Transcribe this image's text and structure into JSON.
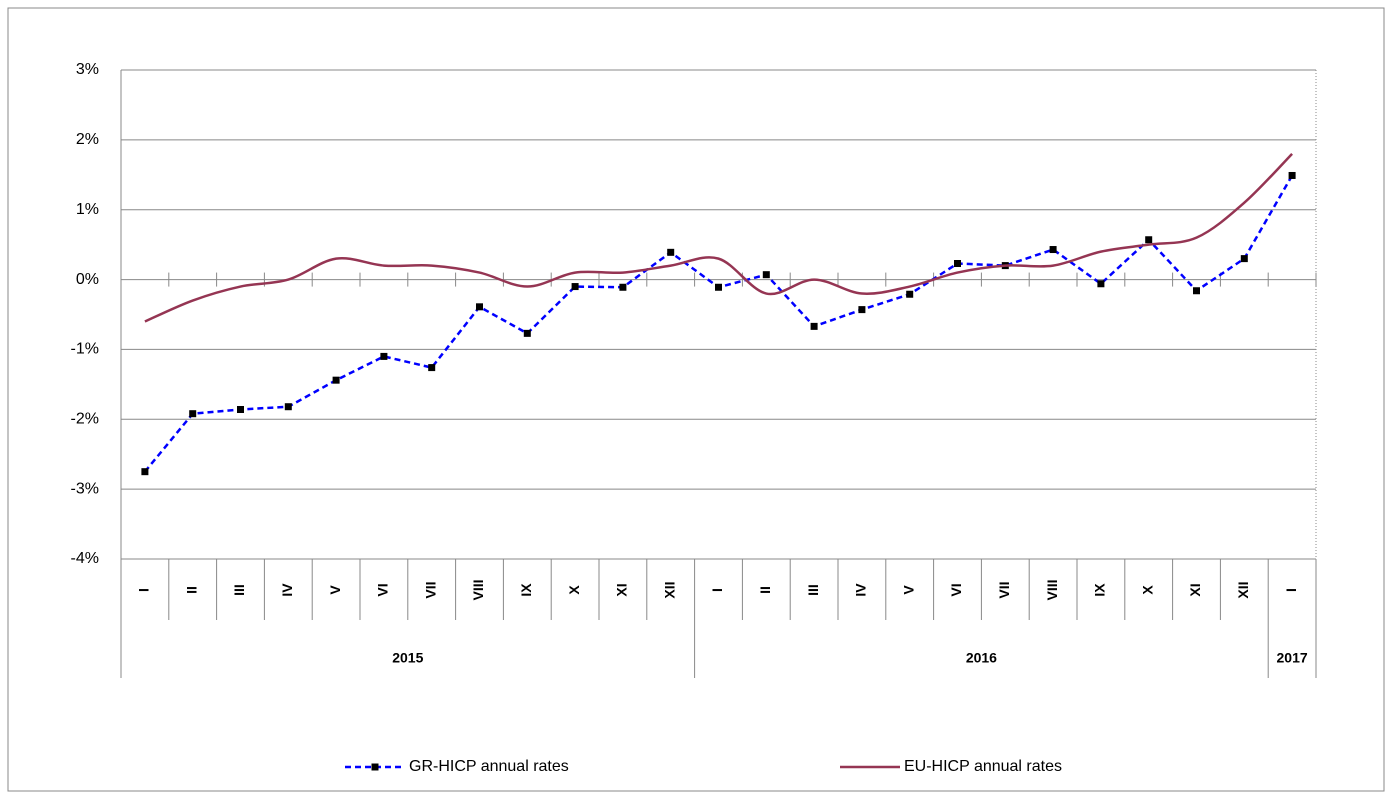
{
  "chart_data": {
    "type": "line",
    "category_groups": [
      {
        "name": "2015",
        "categories": [
          "I",
          "II",
          "III",
          "IV",
          "V",
          "VI",
          "VII",
          "VIII",
          "IX",
          "X",
          "XI",
          "XII"
        ]
      },
      {
        "name": "2016",
        "categories": [
          "I",
          "II",
          "III",
          "IV",
          "V",
          "VI",
          "VII",
          "VIII",
          "IX",
          "X",
          "XI",
          "XII"
        ]
      },
      {
        "name": "2017",
        "categories": [
          "I"
        ]
      }
    ],
    "series": [
      {
        "name": "GR-HICP annual rates",
        "color": "#0000ff",
        "values": [
          -2.75,
          -1.92,
          -1.86,
          -1.82,
          -1.44,
          -1.1,
          -1.26,
          -0.39,
          -0.77,
          -0.1,
          -0.11,
          0.39,
          -0.11,
          0.07,
          -0.67,
          -0.43,
          -0.21,
          0.23,
          0.2,
          0.43,
          -0.06,
          0.57,
          -0.16,
          0.3,
          1.49
        ]
      },
      {
        "name": "EU-HICP annual rates",
        "color": "#953553",
        "values": [
          -0.6,
          -0.3,
          -0.1,
          0.0,
          0.3,
          0.2,
          0.2,
          0.1,
          -0.1,
          0.1,
          0.1,
          0.2,
          0.3,
          -0.2,
          0.0,
          -0.2,
          -0.1,
          0.1,
          0.2,
          0.2,
          0.4,
          0.5,
          0.6,
          1.1,
          1.8
        ]
      }
    ],
    "ylim": [
      -4,
      3
    ],
    "yticks": [
      {
        "value": -4,
        "label": "-4%"
      },
      {
        "value": -3,
        "label": "-3%"
      },
      {
        "value": -2,
        "label": "-2%"
      },
      {
        "value": -1,
        "label": "-1%"
      },
      {
        "value": 0,
        "label": "0%"
      },
      {
        "value": 1,
        "label": "1%"
      },
      {
        "value": 2,
        "label": "2%"
      },
      {
        "value": 3,
        "label": "3%"
      }
    ],
    "grid": true,
    "legend": "bottom"
  }
}
